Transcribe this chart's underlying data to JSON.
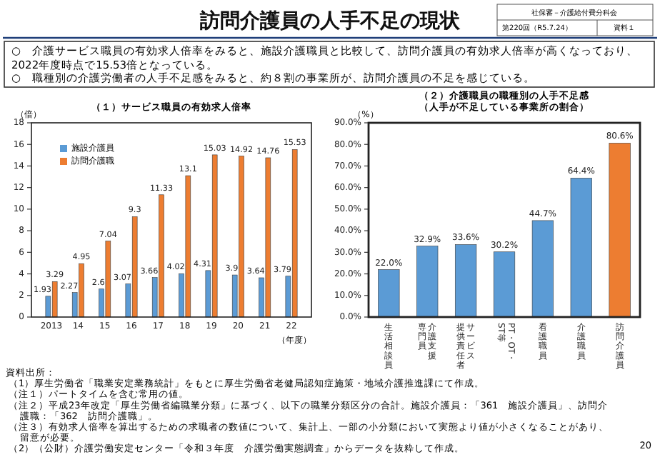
{
  "chart_data": [
    {
      "type": "bar",
      "title": "（１）サービス職員の有効求人倍率",
      "ylabel": "（倍）",
      "xlabel": "（年度）",
      "categories": [
        "2013",
        "14",
        "15",
        "16",
        "17",
        "18",
        "19",
        "20",
        "21",
        "22"
      ],
      "series": [
        {
          "name": "施設介護員",
          "color": "#5b9bd5",
          "values": [
            1.93,
            2.27,
            2.6,
            3.07,
            3.66,
            4.02,
            4.31,
            3.9,
            3.64,
            3.79
          ],
          "value_labels": [
            "1.93",
            "2.27",
            "2.6",
            "3.07",
            "3.66",
            "4.02",
            "4.31",
            "3.9",
            "3.64",
            "3.79"
          ]
        },
        {
          "name": "訪問介護職",
          "color": "#ed7d31",
          "values": [
            3.29,
            4.95,
            7.04,
            9.3,
            11.33,
            13.1,
            15.03,
            14.92,
            14.76,
            15.53
          ],
          "value_labels": [
            "3.29",
            "4.95",
            "7.04",
            "9.3",
            "11.33",
            "13.1",
            "15.03",
            "14.92",
            "14.76",
            "15.53"
          ]
        }
      ],
      "ylim": [
        0,
        18
      ],
      "yticks": [
        0,
        2,
        4,
        6,
        8,
        10,
        12,
        14,
        16,
        18
      ],
      "legend": "top left",
      "annotations": [
        "訪問介護員の人手不足の現状",
        "社保審－介護給付費分科会",
        "第220回（R5.7.24）",
        "資料１",
        "○　介護サービス職員の有効求人倍率をみると、施設介護職員と比較して、訪問介護員の有効求人倍率が高くなっており、2022年度時点で15.53倍となっている。",
        "○　職種別の介護労働者の人手不足感をみると、約８割の事業所が、訪問介護員の不足を感じている。",
        "資料出所：",
        "（1）厚生労働省「職業安定業務統計」をもとに厚生労働省老健局認知症施策・地域介護推進課にて作成。",
        "（注１）パートタイムを含む常用の値。",
        "（注２）平成23年改定「厚生労働省編職業分類」に基づく、以下の職業分類区分の合計。施設介護員：「361　施設介護員」、訪問介護職：「362　訪問介護職」。",
        "（注３）有効求人倍率を算出するための求職者の数値について、集計上、一部の小分類において実態より値が小さくなることがあり、留意が必要。",
        "（2）（公財）介護労働安定センター「令和３年度　介護労働実態調査」からデータを抜粋して作成。",
        "20"
      ]
    },
    {
      "type": "bar",
      "title": "（２）介護職員の職種別の人手不足感",
      "subtitle": "（人手が不足している事業所の割合）",
      "ylabel": "（%）",
      "categories": [
        "生活相談員",
        "介護支援専門員",
        "サービス提供責任者",
        "PT・OT・ST等",
        "看護職員",
        "介護職員",
        "訪問介護員"
      ],
      "values": [
        22.0,
        32.9,
        33.6,
        30.2,
        44.7,
        64.4,
        80.6
      ],
      "value_labels": [
        "22.0%",
        "32.9%",
        "33.6%",
        "30.2%",
        "44.7%",
        "64.4%",
        "80.6%"
      ],
      "colors": [
        "#5b9bd5",
        "#5b9bd5",
        "#5b9bd5",
        "#5b9bd5",
        "#5b9bd5",
        "#5b9bd5",
        "#ed7d31"
      ],
      "ylim": [
        0,
        90
      ],
      "yticks": [
        {
          "value": 0,
          "label": "0.0%"
        },
        {
          "value": 10,
          "label": "10.0%"
        },
        {
          "value": 20,
          "label": "20.0%"
        },
        {
          "value": 30,
          "label": "30.0%"
        },
        {
          "value": 40,
          "label": "40.0%"
        },
        {
          "value": 50,
          "label": "50.0%"
        },
        {
          "value": 60,
          "label": "60.0%"
        },
        {
          "value": 70,
          "label": "70.0%"
        },
        {
          "value": 80,
          "label": "80.0%"
        },
        {
          "value": 90,
          "label": "90.0%"
        }
      ]
    }
  ]
}
